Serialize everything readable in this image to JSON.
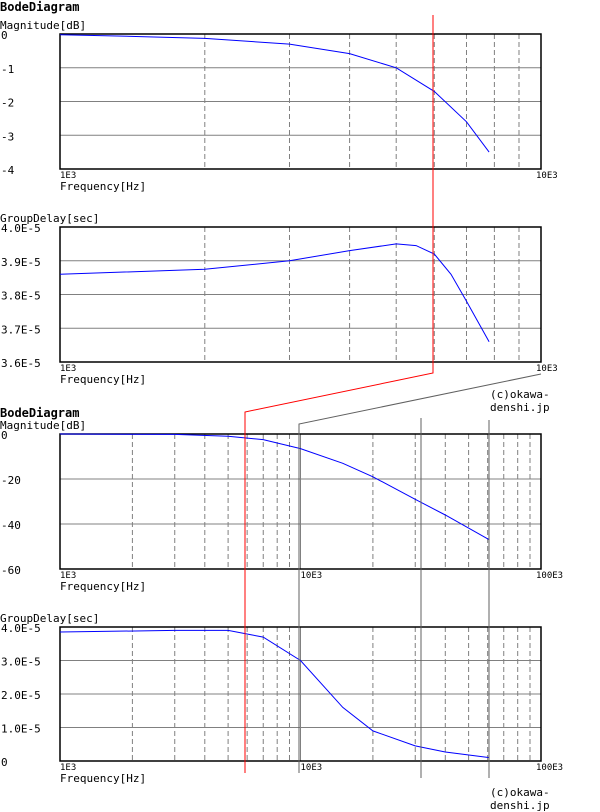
{
  "chart_data": [
    {
      "type": "line",
      "panel_title": "BodeDiagram",
      "ylabel": "Magnitude[dB]",
      "xlabel": "Frequency[Hz]",
      "xscale": "log",
      "xlim": [
        1000,
        10000
      ],
      "ylim": [
        -4,
        0
      ],
      "yticks": [
        "0",
        "-1",
        "-2",
        "-3",
        "-4"
      ],
      "xticks": [
        "1E3",
        "10E3"
      ],
      "grid": true,
      "series": [
        {
          "name": "magnitude",
          "color": "#0000ff",
          "x": [
            1000,
            1500,
            2000,
            3000,
            4000,
            5000,
            6000,
            7000,
            7800
          ],
          "y": [
            -0.02,
            -0.08,
            -0.13,
            -0.3,
            -0.58,
            -1.0,
            -1.7,
            -2.6,
            -3.5
          ]
        }
      ]
    },
    {
      "type": "line",
      "ylabel": "GroupDelay[sec]",
      "xlabel": "Frequency[Hz]",
      "xscale": "log",
      "xlim": [
        1000,
        10000
      ],
      "ylim": [
        3.6e-05,
        4e-05
      ],
      "yticks": [
        "4.0E-5",
        "3.9E-5",
        "3.8E-5",
        "3.7E-5",
        "3.6E-5"
      ],
      "xticks": [
        "1E3",
        "10E3"
      ],
      "grid": true,
      "series": [
        {
          "name": "group delay",
          "color": "#0000ff",
          "x": [
            1000,
            2000,
            3000,
            4000,
            5000,
            5500,
            6000,
            6500,
            7000,
            7800
          ],
          "y": [
            3.86e-05,
            3.875e-05,
            3.9e-05,
            3.93e-05,
            3.95e-05,
            3.945e-05,
            3.92e-05,
            3.86e-05,
            3.78e-05,
            3.66e-05
          ]
        }
      ]
    },
    {
      "type": "line",
      "panel_title": "BodeDiagram",
      "ylabel": "Magnitude[dB]",
      "xlabel": "Frequency[Hz]",
      "xscale": "log",
      "xlim": [
        1000,
        100000
      ],
      "ylim": [
        -60,
        0
      ],
      "yticks": [
        "0",
        "-20",
        "-40",
        "-60"
      ],
      "xticks": [
        "1E3",
        "10E3",
        "100E3"
      ],
      "grid": true,
      "series": [
        {
          "name": "magnitude",
          "color": "#0000ff",
          "x": [
            1000,
            3000,
            5000,
            7000,
            10000,
            15000,
            20000,
            30000,
            40000,
            61000
          ],
          "y": [
            0,
            -0.2,
            -1,
            -2.5,
            -6.5,
            -13,
            -19,
            -29,
            -36,
            -47
          ]
        }
      ]
    },
    {
      "type": "line",
      "ylabel": "GroupDelay[sec]",
      "xlabel": "Frequency[Hz]",
      "xscale": "log",
      "xlim": [
        1000,
        100000
      ],
      "ylim": [
        0,
        4e-05
      ],
      "yticks": [
        "4.0E-5",
        "3.0E-5",
        "2.0E-5",
        "1.0E-5",
        "0"
      ],
      "xticks": [
        "1E3",
        "10E3",
        "100E3"
      ],
      "grid": true,
      "series": [
        {
          "name": "group delay",
          "color": "#0000ff",
          "x": [
            1000,
            3000,
            5000,
            7000,
            10000,
            15000,
            20000,
            30000,
            40000,
            61000
          ],
          "y": [
            3.85e-05,
            3.9e-05,
            3.9e-05,
            3.7e-05,
            3e-05,
            1.6e-05,
            9e-06,
            4.5e-06,
            2.7e-06,
            1e-06
          ]
        }
      ]
    }
  ],
  "copyright": [
    "(c)okawa-denshi.jp",
    "(c)okawa-denshi.jp"
  ],
  "colors": {
    "curve": "#0000ff",
    "marker": "#ff0000",
    "grid": "#808080"
  }
}
